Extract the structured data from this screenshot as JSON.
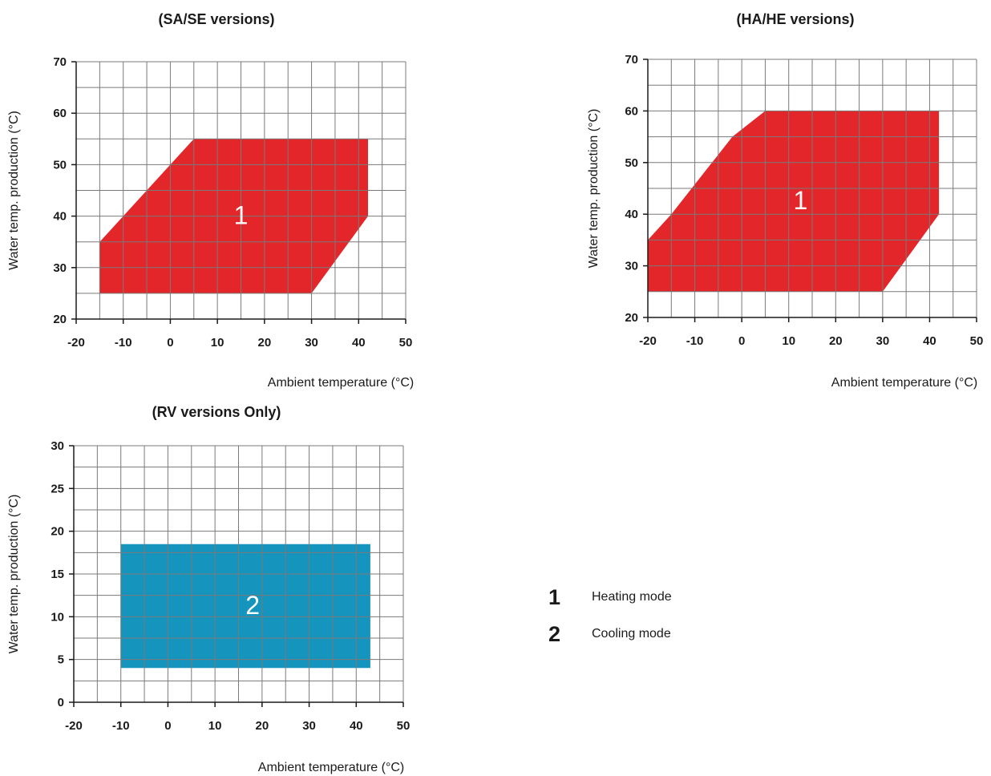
{
  "chart_data": [
    {
      "type": "area",
      "title": "(SA/SE versions)",
      "xlabel": "Ambient temperature (°C)",
      "ylabel": "Water temp. production (°C)",
      "xlim": [
        -20,
        50
      ],
      "ylim": [
        20,
        70
      ],
      "xticks": [
        -20,
        -10,
        0,
        10,
        20,
        30,
        40,
        50
      ],
      "yticks": [
        20,
        30,
        40,
        50,
        60,
        70
      ],
      "tick_labels_x": [
        "-20",
        "-10",
        "0",
        "10",
        "20",
        "30",
        "40",
        "50"
      ],
      "tick_labels_y": [
        "20",
        "30",
        "40",
        "50",
        "60",
        "70"
      ],
      "grid": true,
      "regions": [
        {
          "label": "1",
          "color": "#e32629",
          "polygon": [
            [
              -15,
              25
            ],
            [
              30,
              25
            ],
            [
              42,
              40
            ],
            [
              42,
              55
            ],
            [
              5,
              55
            ],
            [
              -10,
              40
            ],
            [
              -15,
              35
            ]
          ]
        }
      ]
    },
    {
      "type": "area",
      "title": "(HA/HE versions)",
      "xlabel": "Ambient temperature (°C)",
      "ylabel": "Water temp. production (°C)",
      "xlim": [
        -20,
        50
      ],
      "ylim": [
        20,
        70
      ],
      "xticks": [
        -20,
        -10,
        0,
        10,
        20,
        30,
        40,
        50
      ],
      "yticks": [
        20,
        30,
        40,
        50,
        60,
        70
      ],
      "tick_labels_x": [
        "-20",
        "-10",
        "0",
        "10",
        "20",
        "30",
        "40",
        "50"
      ],
      "tick_labels_y": [
        "20",
        "30",
        "40",
        "50",
        "60",
        "70"
      ],
      "grid": true,
      "regions": [
        {
          "label": "1",
          "color": "#e32629",
          "polygon": [
            [
              -20,
              25
            ],
            [
              30,
              25
            ],
            [
              42,
              40
            ],
            [
              42,
              60
            ],
            [
              5,
              60
            ],
            [
              -2,
              55
            ],
            [
              -15,
              40
            ],
            [
              -20,
              35
            ]
          ]
        }
      ]
    },
    {
      "type": "area",
      "title": "(RV versions Only)",
      "xlabel": "Ambient temperature (°C)",
      "ylabel": "Water temp. production (°C)",
      "xlim": [
        -20,
        50
      ],
      "ylim": [
        0,
        30
      ],
      "xticks": [
        -20,
        -10,
        0,
        10,
        20,
        30,
        40,
        50
      ],
      "yticks": [
        0,
        5,
        10,
        15,
        20,
        25,
        30
      ],
      "tick_labels_x": [
        "-20",
        "-10",
        "0",
        "10",
        "20",
        "30",
        "40",
        "50"
      ],
      "tick_labels_y": [
        "0",
        "5",
        "10",
        "15",
        "20",
        "25",
        "30"
      ],
      "grid": true,
      "regions": [
        {
          "label": "2",
          "color": "#1594bd",
          "polygon": [
            [
              -10,
              4
            ],
            [
              43,
              4
            ],
            [
              43,
              18.5
            ],
            [
              -10,
              18.5
            ]
          ]
        }
      ]
    }
  ],
  "legend": {
    "items": [
      {
        "number": "1",
        "text": "Heating mode"
      },
      {
        "number": "2",
        "text": "Cooling mode"
      }
    ]
  }
}
